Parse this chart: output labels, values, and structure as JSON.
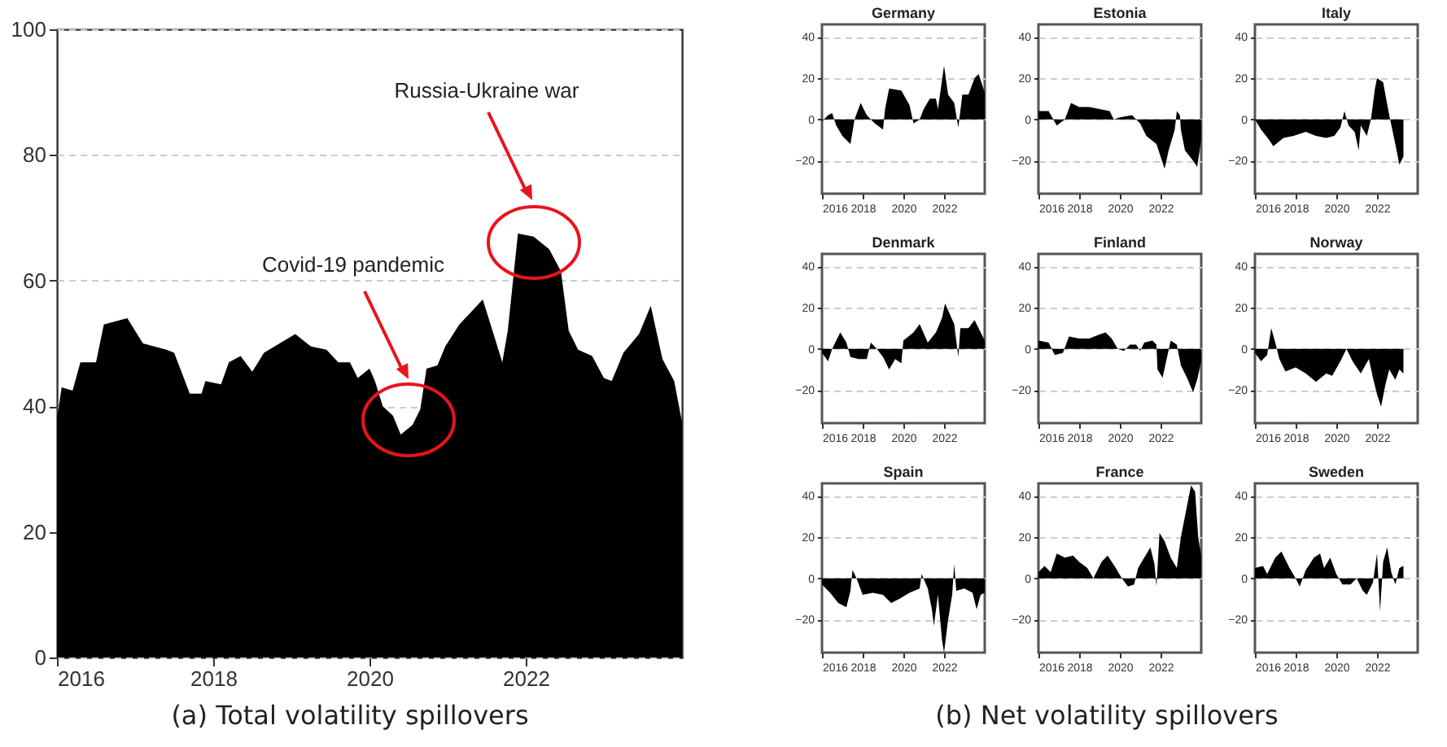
{
  "chart_data": [
    {
      "type": "area",
      "annotations": [
        "Russia-Ukraine war",
        "Covid-19 pandemic",
        "(a) Total volatility spillovers"
      ],
      "x": [
        2016.0,
        2016.06,
        2016.2,
        2016.3,
        2016.5,
        2016.6,
        2016.9,
        2017.0,
        2017.1,
        2017.4,
        2017.5,
        2017.7,
        2017.85,
        2017.9,
        2018.1,
        2018.2,
        2018.35,
        2018.5,
        2018.65,
        2018.85,
        2019.05,
        2019.25,
        2019.45,
        2019.6,
        2019.75,
        2019.85,
        2020.0,
        2020.07,
        2020.17,
        2020.3,
        2020.4,
        2020.55,
        2020.65,
        2020.73,
        2020.87,
        2020.97,
        2021.15,
        2021.3,
        2021.45,
        2021.55,
        2021.7,
        2021.77,
        2021.9,
        2022.1,
        2022.3,
        2022.45,
        2022.55,
        2022.67,
        2022.85,
        2023.0,
        2023.1,
        2023.25,
        2023.45,
        2023.6,
        2023.75,
        2023.9,
        2024.0
      ],
      "series": [
        {
          "color": "#000000",
          "values": [
            38,
            43,
            42.5,
            47,
            47,
            53,
            54,
            52,
            50,
            49,
            48.5,
            42,
            42,
            44,
            43.5,
            47,
            48,
            45.5,
            48.5,
            50,
            51.5,
            49.5,
            49,
            47,
            47,
            44.5,
            46,
            44,
            40,
            38.5,
            35.5,
            37,
            39.5,
            46,
            46.5,
            49.5,
            53,
            55,
            57,
            53,
            47,
            52,
            67.5,
            67,
            65,
            61.5,
            52,
            49,
            48,
            44.5,
            44,
            48.5,
            51.5,
            56,
            47.5,
            44,
            37.5
          ]
        }
      ],
      "xlim": [
        2016,
        2024
      ],
      "ylim": [
        0,
        100
      ],
      "xticks": [
        2016,
        2018,
        2020,
        2022
      ],
      "yticks": [
        0,
        20,
        40,
        60,
        80,
        100
      ],
      "grid": "y"
    },
    {
      "type": "area",
      "title": "Germany",
      "annotations": [
        "(b) Net volatility spillovers"
      ],
      "x": [
        2016.0,
        2016.3,
        2016.5,
        2016.7,
        2017.0,
        2017.4,
        2017.6,
        2017.9,
        2018.2,
        2018.6,
        2019.0,
        2019.1,
        2019.3,
        2019.9,
        2020.3,
        2020.5,
        2020.8,
        2021.0,
        2021.3,
        2021.6,
        2021.7,
        2022.0,
        2022.2,
        2022.5,
        2022.7,
        2022.9,
        2023.2,
        2023.5,
        2023.7,
        2024.0
      ],
      "series": [
        {
          "color": "#000000",
          "values": [
            -1,
            2,
            3,
            -3,
            -8,
            -12,
            0,
            8,
            2,
            -2,
            -5,
            5,
            15,
            14,
            7,
            -2,
            0,
            5,
            10,
            10,
            5,
            26,
            12,
            8,
            -4,
            12,
            12,
            20,
            22,
            13
          ]
        }
      ],
      "xlim": [
        2016,
        2024
      ],
      "ylim": [
        -36,
        46
      ],
      "xticks": [
        2016,
        2018,
        2020,
        2022
      ],
      "yticks": [
        -20,
        0,
        20,
        40
      ],
      "grid": "y"
    },
    {
      "type": "area",
      "title": "Estonia",
      "x": [
        2016.0,
        2016.5,
        2016.9,
        2017.3,
        2017.6,
        2018.0,
        2018.5,
        2019.0,
        2019.5,
        2019.7,
        2020.0,
        2020.6,
        2021.0,
        2021.3,
        2021.8,
        2022.2,
        2022.4,
        2022.7,
        2022.8,
        2022.95,
        2023.0,
        2023.2,
        2023.6,
        2023.8,
        2024.0
      ],
      "series": [
        {
          "color": "#000000",
          "values": [
            4,
            4,
            -3,
            0,
            8,
            6,
            6,
            5,
            4,
            0,
            1,
            2,
            -2,
            -8,
            -12,
            -24,
            -15,
            -5,
            4,
            2,
            -5,
            -15,
            -20,
            -23,
            -10
          ]
        }
      ],
      "xlim": [
        2016,
        2024
      ],
      "ylim": [
        -36,
        46
      ],
      "xticks": [
        2016,
        2018,
        2020,
        2022
      ],
      "yticks": [
        -20,
        0,
        20,
        40
      ],
      "grid": "y"
    },
    {
      "type": "area",
      "title": "Italy",
      "x": [
        2016.0,
        2016.3,
        2016.7,
        2016.9,
        2017.4,
        2017.9,
        2018.5,
        2019.0,
        2019.5,
        2019.9,
        2020.2,
        2020.4,
        2020.6,
        2020.9,
        2021.1,
        2021.2,
        2021.5,
        2021.7,
        2021.9,
        2022.0,
        2022.3,
        2022.6,
        2022.9,
        2023.1,
        2023.3
      ],
      "series": [
        {
          "color": "#000000",
          "values": [
            0,
            -5,
            -10,
            -13,
            -9,
            -8,
            -6,
            -8,
            -9,
            -8,
            -4,
            4,
            -3,
            -6,
            -15,
            -3,
            -8,
            0,
            15,
            20,
            18,
            2,
            -12,
            -22,
            -18
          ]
        }
      ],
      "xlim": [
        2016,
        2024
      ],
      "ylim": [
        -36,
        46
      ],
      "xticks": [
        2016,
        2018,
        2020,
        2022
      ],
      "yticks": [
        -20,
        0,
        20,
        40
      ],
      "grid": "y"
    },
    {
      "type": "area",
      "title": "Denmark",
      "x": [
        2016.0,
        2016.3,
        2016.5,
        2016.9,
        2017.2,
        2017.4,
        2017.8,
        2018.2,
        2018.4,
        2018.7,
        2019.0,
        2019.3,
        2019.6,
        2019.9,
        2020.0,
        2020.5,
        2020.8,
        2021.2,
        2021.6,
        2021.9,
        2022.05,
        2022.5,
        2022.7,
        2022.8,
        2023.2,
        2023.5,
        2023.8,
        2024.0
      ],
      "series": [
        {
          "color": "#000000",
          "values": [
            -2,
            -6,
            0,
            8,
            3,
            -4,
            -5,
            -5,
            3,
            0,
            -4,
            -10,
            -5,
            -7,
            4,
            8,
            12,
            3,
            8,
            15,
            22,
            12,
            -4,
            10,
            10,
            14,
            8,
            4
          ]
        }
      ],
      "xlim": [
        2016,
        2024
      ],
      "ylim": [
        -36,
        46
      ],
      "xticks": [
        2016,
        2018,
        2020,
        2022
      ],
      "yticks": [
        -20,
        0,
        20,
        40
      ],
      "grid": "y"
    },
    {
      "type": "area",
      "title": "Finland",
      "x": [
        2016.0,
        2016.5,
        2016.8,
        2017.2,
        2017.5,
        2018.0,
        2018.5,
        2019.0,
        2019.3,
        2019.6,
        2019.9,
        2020.2,
        2020.5,
        2020.8,
        2021.0,
        2021.2,
        2021.6,
        2021.8,
        2021.85,
        2022.1,
        2022.3,
        2022.5,
        2022.8,
        2023.0,
        2023.3,
        2023.6,
        2023.8,
        2024.0
      ],
      "series": [
        {
          "color": "#000000",
          "values": [
            4,
            3,
            -3,
            -2,
            6,
            5,
            5,
            7,
            8,
            5,
            0,
            -1,
            2,
            2,
            -1,
            3,
            4,
            2,
            -10,
            -14,
            -5,
            4,
            2,
            -8,
            -14,
            -21,
            -15,
            -6
          ]
        }
      ],
      "xlim": [
        2016,
        2024
      ],
      "ylim": [
        -36,
        46
      ],
      "xticks": [
        2016,
        2018,
        2020,
        2022
      ],
      "yticks": [
        -20,
        0,
        20,
        40
      ],
      "grid": "y"
    },
    {
      "type": "area",
      "title": "Norway",
      "x": [
        2016.0,
        2016.3,
        2016.6,
        2016.8,
        2017.0,
        2017.2,
        2017.5,
        2018.0,
        2018.5,
        2019.0,
        2019.5,
        2019.8,
        2020.2,
        2020.5,
        2020.8,
        2021.2,
        2021.6,
        2021.8,
        2022.0,
        2022.2,
        2022.4,
        2022.6,
        2022.9,
        2023.1,
        2023.3
      ],
      "series": [
        {
          "color": "#000000",
          "values": [
            -2,
            -6,
            -3,
            10,
            3,
            -5,
            -11,
            -9,
            -12,
            -16,
            -12,
            -13,
            -6,
            0,
            -6,
            -12,
            -5,
            -14,
            -22,
            -28,
            -18,
            -10,
            -15,
            -10,
            -12
          ]
        }
      ],
      "xlim": [
        2016,
        2024
      ],
      "ylim": [
        -36,
        46
      ],
      "xticks": [
        2016,
        2018,
        2020,
        2022
      ],
      "yticks": [
        -20,
        0,
        20,
        40
      ],
      "grid": "y"
    },
    {
      "type": "area",
      "title": "Spain",
      "x": [
        2016.0,
        2016.4,
        2016.8,
        2017.2,
        2017.4,
        2017.5,
        2017.7,
        2018.0,
        2018.5,
        2019.0,
        2019.4,
        2019.8,
        2020.3,
        2020.8,
        2020.9,
        2021.2,
        2021.4,
        2021.5,
        2021.7,
        2021.9,
        2022.0,
        2022.2,
        2022.4,
        2022.5,
        2022.6,
        2023.0,
        2023.4,
        2023.6,
        2023.8,
        2024.0
      ],
      "series": [
        {
          "color": "#000000",
          "values": [
            -3,
            -7,
            -12,
            -14,
            -6,
            4,
            0,
            -8,
            -7,
            -8,
            -12,
            -10,
            -7,
            -5,
            2,
            -5,
            -15,
            -23,
            -8,
            -30,
            -36,
            -20,
            -8,
            7,
            -6,
            -5,
            -7,
            -15,
            -8,
            -7
          ]
        }
      ],
      "xlim": [
        2016,
        2024
      ],
      "ylim": [
        -36,
        46
      ],
      "xticks": [
        2016,
        2018,
        2020,
        2022
      ],
      "yticks": [
        -20,
        0,
        20,
        40
      ],
      "grid": "y"
    },
    {
      "type": "area",
      "title": "France",
      "x": [
        2016.0,
        2016.3,
        2016.6,
        2016.9,
        2017.3,
        2017.7,
        2018.0,
        2018.4,
        2018.7,
        2019.1,
        2019.4,
        2019.8,
        2020.1,
        2020.4,
        2020.7,
        2020.9,
        2021.2,
        2021.5,
        2021.7,
        2021.8,
        2021.95,
        2022.2,
        2022.5,
        2022.8,
        2023.0,
        2023.3,
        2023.5,
        2023.7,
        2023.85,
        2024.0
      ],
      "series": [
        {
          "color": "#000000",
          "values": [
            3,
            6,
            3,
            12,
            10,
            11,
            8,
            5,
            0,
            8,
            11,
            5,
            0,
            -4,
            -3,
            5,
            10,
            15,
            7,
            -4,
            22,
            18,
            10,
            5,
            20,
            35,
            45,
            42,
            20,
            11
          ]
        }
      ],
      "xlim": [
        2016,
        2024
      ],
      "ylim": [
        -36,
        46
      ],
      "xticks": [
        2016,
        2018,
        2020,
        2022
      ],
      "yticks": [
        -20,
        0,
        20,
        40
      ],
      "grid": "y"
    },
    {
      "type": "area",
      "title": "Sweden",
      "x": [
        2016.0,
        2016.4,
        2016.6,
        2017.0,
        2017.3,
        2017.7,
        2018.0,
        2018.2,
        2018.5,
        2018.9,
        2019.2,
        2019.4,
        2019.7,
        2020.0,
        2020.3,
        2020.7,
        2021.0,
        2021.3,
        2021.5,
        2021.8,
        2022.0,
        2022.15,
        2022.3,
        2022.5,
        2022.7,
        2022.9,
        2023.1,
        2023.3
      ],
      "series": [
        {
          "color": "#000000",
          "values": [
            5,
            6,
            2,
            10,
            13,
            5,
            0,
            -4,
            4,
            10,
            12,
            5,
            10,
            2,
            -3,
            -3,
            0,
            -6,
            -8,
            -2,
            12,
            -16,
            8,
            15,
            3,
            -3,
            5,
            6
          ]
        }
      ],
      "xlim": [
        2016,
        2024
      ],
      "ylim": [
        -36,
        46
      ],
      "xticks": [
        2016,
        2018,
        2020,
        2022
      ],
      "yticks": [
        -20,
        0,
        20,
        40
      ],
      "grid": "y"
    }
  ]
}
